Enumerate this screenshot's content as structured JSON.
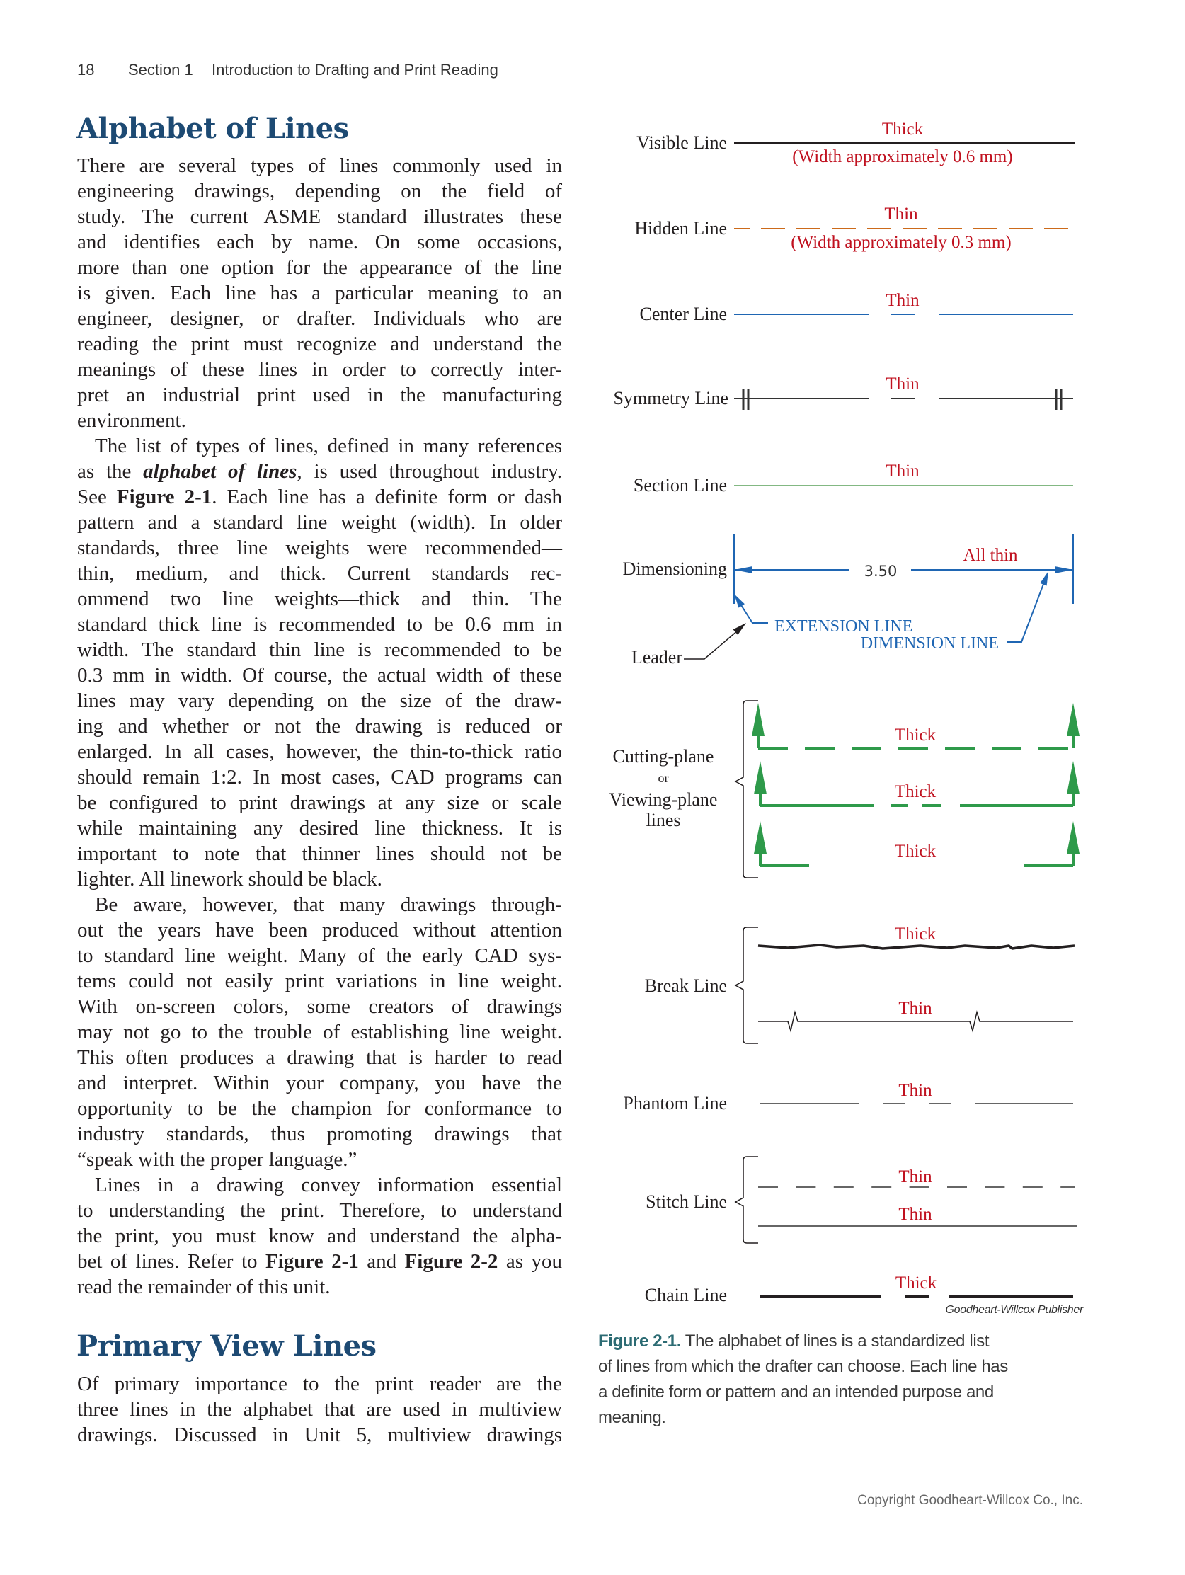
{
  "header": {
    "page_number": "18",
    "section": "Section 1",
    "title": "Introduction to Drafting and Print Reading"
  },
  "section1": {
    "heading": "Alphabet of Lines",
    "paragraphs": [
      {
        "indent": false,
        "lines": [
          "There are several types of lines commonly used in",
          "engineering drawings, depending on the field of",
          "study. The current ASME standard illustrates these",
          "and identifies each by name. On some occasions,",
          "more than one option for the appearance of the line",
          "is given. Each line has a particular meaning to an",
          "engineer, designer, or drafter. Individuals who are",
          "reading the print must recognize and understand the",
          "meanings of these lines in order to correctly inter-",
          "pret an industrial print used in the manufacturing",
          "environment."
        ]
      },
      {
        "indent": true,
        "lines": [
          "The list of types of lines, defined in many references",
          [
            {
              "text": "as the ",
              "style": ""
            },
            {
              "text": "alphabet of lines",
              "style": "i"
            },
            {
              "text": ", is used throughout industry.",
              "style": ""
            }
          ],
          [
            {
              "text": "See ",
              "style": ""
            },
            {
              "text": "Figure 2-1",
              "style": "b"
            },
            {
              "text": ". Each line has a definite form or dash",
              "style": ""
            }
          ],
          "pattern and a standard line weight (width). In older",
          "standards, three line weights were recommended—",
          "thin, medium, and thick. Current standards rec-",
          "ommend two line weights—thick and thin. The",
          "standard thick line is recommended to be 0.6 mm in",
          "width. The standard thin line is recommended to be",
          "0.3 mm in width. Of course, the actual width of these",
          "lines may vary depending on the size of the draw-",
          "ing and whether or not the drawing is reduced or",
          "enlarged. In all cases, however, the thin-to-thick ratio",
          "should remain 1:2. In most cases, CAD programs can",
          "be configured to print drawings at any size or scale",
          "while maintaining any desired line thickness. It is",
          "important to note that thinner lines should not be",
          "lighter. All linework should be black."
        ]
      },
      {
        "indent": true,
        "lines": [
          "Be aware, however, that many drawings through-",
          "out the years have been produced without attention",
          "to standard line weight. Many of the early CAD sys-",
          "tems could not easily print variations in line weight.",
          "With on-screen colors, some creators of drawings",
          "may not go to the trouble of establishing line weight.",
          "This often produces a drawing that is harder to read",
          "and interpret. Within your company, you have the",
          "opportunity to be the champion for conformance to",
          "industry standards, thus promoting drawings that",
          "“speak with the proper language.”"
        ]
      },
      {
        "indent": true,
        "lines": [
          "Lines in a drawing convey information essential",
          "to understanding the print. Therefore, to understand",
          "the print, you must know and understand the alpha-",
          [
            {
              "text": "bet of lines. Refer to ",
              "style": ""
            },
            {
              "text": "Figure 2-1",
              "style": "b"
            },
            {
              "text": " and ",
              "style": ""
            },
            {
              "text": "Figure 2-2",
              "style": "b"
            },
            {
              "text": " as you",
              "style": ""
            }
          ],
          "read the remainder of this unit."
        ]
      }
    ]
  },
  "section2": {
    "heading": "Primary View Lines",
    "paragraphs": [
      {
        "indent": false,
        "lines": [
          "Of primary importance to the print reader are the",
          "three lines in the alphabet that are used in multiview",
          "drawings. Discussed in Unit 5, multiview drawings"
        ]
      }
    ]
  },
  "figure": {
    "visible": {
      "label": "Visible Line",
      "weight": "Thick",
      "note": "(Width approximately 0.6 mm)"
    },
    "hidden": {
      "label": "Hidden Line",
      "weight": "Thin",
      "note": "(Width approximately 0.3 mm)"
    },
    "center": {
      "label": "Center Line",
      "weight": "Thin"
    },
    "symmetry": {
      "label": "Symmetry Line",
      "weight": "Thin"
    },
    "section": {
      "label": "Section Line",
      "weight": "Thin"
    },
    "dimensioning": {
      "label": "Dimensioning",
      "weight": "All thin",
      "value": "3.50",
      "extension_label": "EXTENSION LINE",
      "dimension_label": "DIMENSION LINE",
      "leader_label": "Leader"
    },
    "cutting_plane": {
      "label_1": "Cutting-plane",
      "label_or": "or",
      "label_2": "Viewing-plane",
      "label_3": "lines",
      "weights": [
        "Thick",
        "Thick",
        "Thick"
      ]
    },
    "break": {
      "label": "Break Line",
      "weights": [
        "Thick",
        "Thin"
      ]
    },
    "phantom": {
      "label": "Phantom Line",
      "weight": "Thin"
    },
    "stitch": {
      "label": "Stitch Line",
      "weights": [
        "Thin",
        "Thin"
      ]
    },
    "chain": {
      "label": "Chain Line",
      "weight": "Thick"
    },
    "credit": "Goodheart-Willcox Publisher",
    "caption_label": "Figure 2-1.",
    "caption_lines": [
      " The alphabet of lines is a standardized list",
      "of lines from which the drafter can choose. Each line has",
      "a definite form or pattern and an intended purpose and",
      "meaning."
    ],
    "colors": {
      "weight_text": "#c0111f",
      "hidden": "#cc6a1a",
      "center": "#1f66b3",
      "section": "#5aa05a",
      "cutting_plane": "#2e9a4a",
      "dimension": "#1f66b3"
    }
  },
  "footer": {
    "copyright": "Copyright Goodheart-Willcox Co., Inc."
  }
}
